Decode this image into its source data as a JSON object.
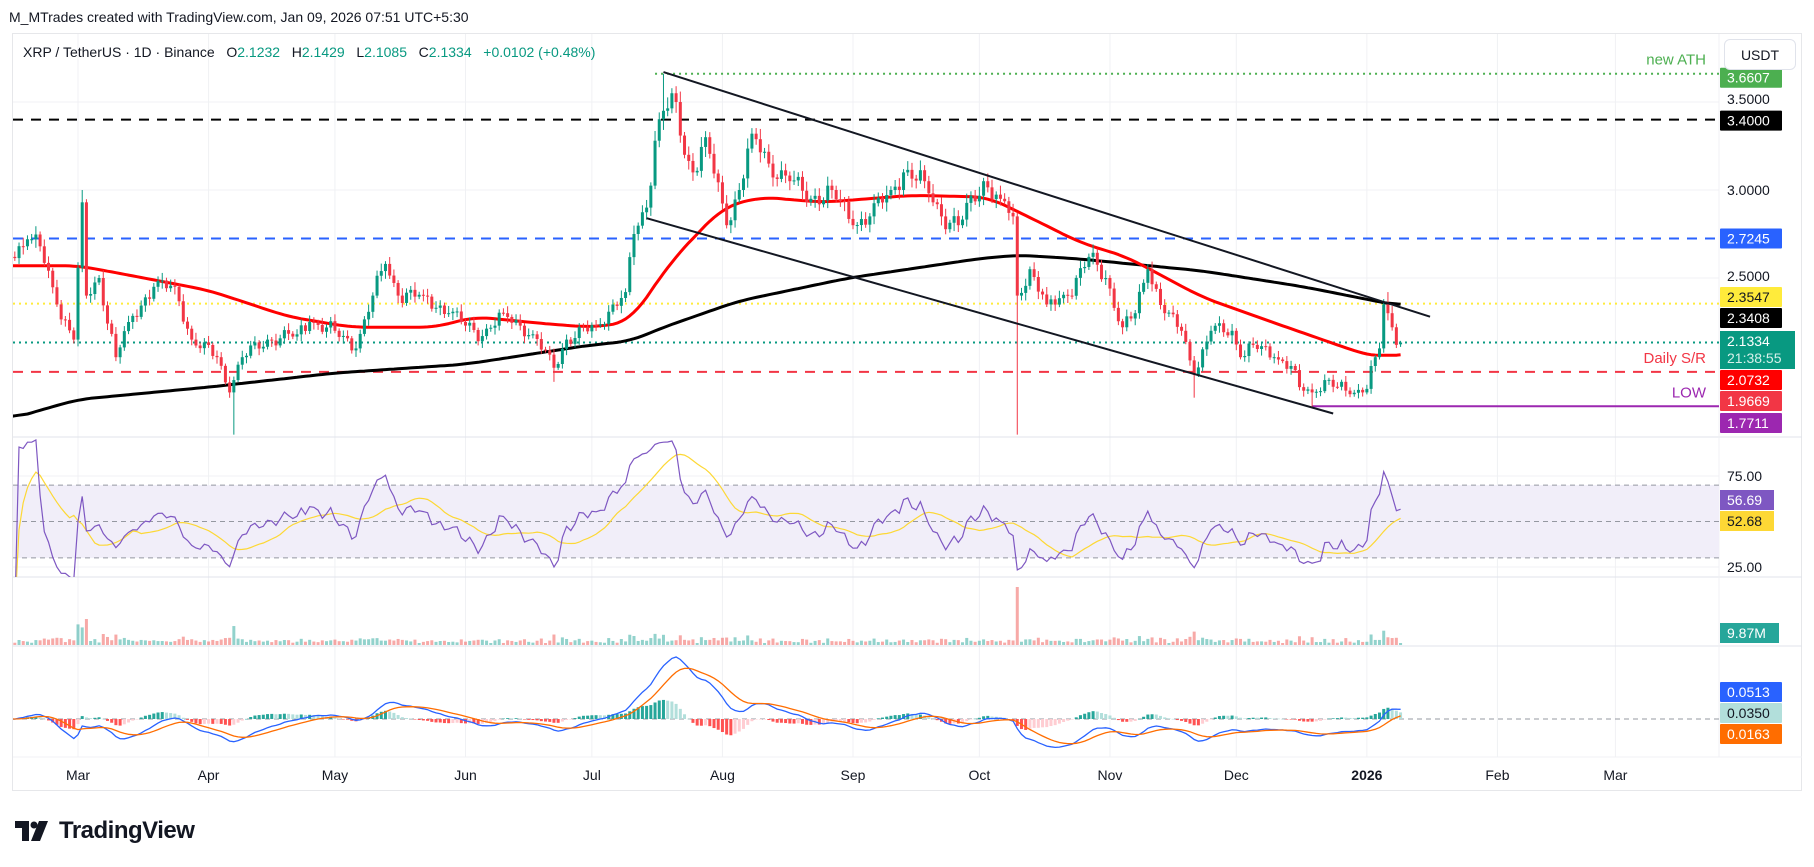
{
  "credit": "M_MTrades created with TradingView.com, Jan 09, 2026 07:51 UTC+5:30",
  "legend": {
    "symbol": "XRP / TetherUS · 1D · Binance",
    "o_label": "O",
    "o": "2.1232",
    "h_label": "H",
    "h": "2.1429",
    "l_label": "L",
    "l": "2.1085",
    "c_label": "C",
    "c": "2.1334",
    "change": "+0.0102 (+0.48%)"
  },
  "currency_button": "USDT",
  "brand": "TradingView",
  "colors": {
    "up": "#089981",
    "down": "#f23645",
    "ma50": "#ff0000",
    "ma200": "#000000",
    "rsi": "#7e57c2",
    "rsi_ma": "#fdd835",
    "macd": "#2962ff",
    "signal": "#ff6d00",
    "ath": "#4caf50",
    "resistance": "#2962ff",
    "sr": "#f23645",
    "low": "#9c27b0"
  },
  "chart_data": {
    "type": "candlestick",
    "symbol": "XRP / TetherUS",
    "timeframe": "1D",
    "y_axis": {
      "ticks": [
        "3.5000",
        "3.0000",
        "2.5000"
      ],
      "range": [
        1.55,
        3.75
      ],
      "scale": "linear"
    },
    "x_axis": {
      "ticks": [
        "Mar",
        "Apr",
        "May",
        "Jun",
        "Jul",
        "Aug",
        "Sep",
        "Oct",
        "Nov",
        "Dec",
        "2026",
        "Feb",
        "Mar"
      ]
    },
    "close_path": [
      [
        "2025-02-13",
        2.62
      ],
      [
        "2025-02-17",
        2.72
      ],
      [
        "2025-02-20",
        2.68
      ],
      [
        "2025-02-24",
        2.35
      ],
      [
        "2025-02-28",
        2.15
      ],
      [
        "2025-03-02",
        2.93
      ],
      [
        "2025-03-03",
        2.4
      ],
      [
        "2025-03-06",
        2.5
      ],
      [
        "2025-03-10",
        2.05
      ],
      [
        "2025-03-13",
        2.25
      ],
      [
        "2025-03-19",
        2.45
      ],
      [
        "2025-03-24",
        2.45
      ],
      [
        "2025-03-28",
        2.15
      ],
      [
        "2025-04-03",
        2.05
      ],
      [
        "2025-04-06",
        1.85
      ],
      [
        "2025-04-07",
        1.92
      ],
      [
        "2025-04-09",
        2.05
      ],
      [
        "2025-04-15",
        2.15
      ],
      [
        "2025-04-22",
        2.18
      ],
      [
        "2025-04-25",
        2.25
      ],
      [
        "2025-05-01",
        2.2
      ],
      [
        "2025-05-06",
        2.1
      ],
      [
        "2025-05-10",
        2.4
      ],
      [
        "2025-05-13",
        2.58
      ],
      [
        "2025-05-16",
        2.4
      ],
      [
        "2025-05-22",
        2.4
      ],
      [
        "2025-05-28",
        2.3
      ],
      [
        "2025-06-05",
        2.17
      ],
      [
        "2025-06-10",
        2.3
      ],
      [
        "2025-06-17",
        2.18
      ],
      [
        "2025-06-22",
        1.99
      ],
      [
        "2025-06-25",
        2.15
      ],
      [
        "2025-07-02",
        2.23
      ],
      [
        "2025-07-09",
        2.42
      ],
      [
        "2025-07-11",
        2.75
      ],
      [
        "2025-07-14",
        2.9
      ],
      [
        "2025-07-16",
        3.28
      ],
      [
        "2025-07-18",
        3.45
      ],
      [
        "2025-07-21",
        3.5
      ],
      [
        "2025-07-23",
        3.2
      ],
      [
        "2025-07-25",
        3.1
      ],
      [
        "2025-07-28",
        3.3
      ],
      [
        "2025-08-02",
        2.8
      ],
      [
        "2025-08-05",
        3.0
      ],
      [
        "2025-08-08",
        3.32
      ],
      [
        "2025-08-12",
        3.15
      ],
      [
        "2025-08-17",
        3.05
      ],
      [
        "2025-08-22",
        2.95
      ],
      [
        "2025-08-27",
        3.0
      ],
      [
        "2025-09-01",
        2.8
      ],
      [
        "2025-09-05",
        2.85
      ],
      [
        "2025-09-10",
        3.0
      ],
      [
        "2025-09-13",
        3.1
      ],
      [
        "2025-09-18",
        3.05
      ],
      [
        "2025-09-22",
        2.85
      ],
      [
        "2025-09-26",
        2.8
      ],
      [
        "2025-10-02",
        3.05
      ],
      [
        "2025-10-06",
        2.95
      ],
      [
        "2025-10-09",
        2.85
      ],
      [
        "2025-10-10",
        2.4
      ],
      [
        "2025-10-13",
        2.55
      ],
      [
        "2025-10-17",
        2.35
      ],
      [
        "2025-10-22",
        2.4
      ],
      [
        "2025-10-27",
        2.62
      ],
      [
        "2025-10-31",
        2.5
      ],
      [
        "2025-11-04",
        2.22
      ],
      [
        "2025-11-07",
        2.3
      ],
      [
        "2025-11-10",
        2.55
      ],
      [
        "2025-11-14",
        2.3
      ],
      [
        "2025-11-18",
        2.2
      ],
      [
        "2025-11-21",
        1.95
      ],
      [
        "2025-11-25",
        2.2
      ],
      [
        "2025-11-30",
        2.2
      ],
      [
        "2025-12-02",
        2.05
      ],
      [
        "2025-12-05",
        2.12
      ],
      [
        "2025-12-10",
        2.05
      ],
      [
        "2025-12-14",
        2.0
      ],
      [
        "2025-12-16",
        1.88
      ],
      [
        "2025-12-19",
        1.85
      ],
      [
        "2025-12-22",
        1.92
      ],
      [
        "2025-12-27",
        1.86
      ],
      [
        "2025-12-31",
        1.85
      ],
      [
        "2026-01-01",
        1.87
      ],
      [
        "2026-01-02",
        2.0
      ],
      [
        "2026-01-03",
        2.05
      ],
      [
        "2026-01-04",
        2.1
      ],
      [
        "2026-01-05",
        2.35
      ],
      [
        "2026-01-06",
        2.3
      ],
      [
        "2026-01-07",
        2.22
      ],
      [
        "2026-01-08",
        2.12
      ]
    ],
    "last_candle": {
      "date": "2026-01-09",
      "open": 2.1232,
      "high": 2.1429,
      "low": 2.1085,
      "close": 2.1334
    },
    "extremes": [
      {
        "date": "2025-03-02",
        "high": 3.0
      },
      {
        "date": "2025-04-07",
        "low": 1.61
      },
      {
        "date": "2025-06-22",
        "low": 1.91
      },
      {
        "date": "2025-07-18",
        "high": 3.66
      },
      {
        "date": "2025-10-10",
        "low": 1.61
      },
      {
        "date": "2025-11-21",
        "low": 1.82
      },
      {
        "date": "2025-12-19",
        "low": 1.77
      },
      {
        "date": "2026-01-06",
        "high": 2.42
      }
    ],
    "ma50": [
      [
        "2025-02-13",
        2.57
      ],
      [
        "2025-03-01",
        2.57
      ],
      [
        "2025-03-10",
        2.53
      ],
      [
        "2025-04-01",
        2.43
      ],
      [
        "2025-04-20",
        2.28
      ],
      [
        "2025-05-05",
        2.22
      ],
      [
        "2025-05-25",
        2.22
      ],
      [
        "2025-06-03",
        2.28
      ],
      [
        "2025-06-20",
        2.24
      ],
      [
        "2025-07-01",
        2.22
      ],
      [
        "2025-07-10",
        2.25
      ],
      [
        "2025-07-20",
        2.6
      ],
      [
        "2025-08-01",
        2.9
      ],
      [
        "2025-08-10",
        2.96
      ],
      [
        "2025-08-25",
        2.93
      ],
      [
        "2025-09-15",
        2.97
      ],
      [
        "2025-10-03",
        2.96
      ],
      [
        "2025-10-15",
        2.82
      ],
      [
        "2025-10-25",
        2.7
      ],
      [
        "2025-11-05",
        2.62
      ],
      [
        "2025-11-12",
        2.53
      ],
      [
        "2025-11-23",
        2.39
      ],
      [
        "2025-12-13",
        2.22
      ],
      [
        "2025-12-31",
        2.07
      ],
      [
        "2026-01-04",
        2.05
      ],
      [
        "2026-01-09",
        2.0732
      ]
    ],
    "ma200": [
      [
        "2025-02-13",
        1.7
      ],
      [
        "2025-03-01",
        1.81
      ],
      [
        "2025-04-01",
        1.88
      ],
      [
        "2025-05-01",
        1.96
      ],
      [
        "2025-06-01",
        2.01
      ],
      [
        "2025-06-20",
        2.08
      ],
      [
        "2025-07-01",
        2.12
      ],
      [
        "2025-07-10",
        2.14
      ],
      [
        "2025-07-18",
        2.22
      ],
      [
        "2025-08-05",
        2.37
      ],
      [
        "2025-08-31",
        2.5
      ],
      [
        "2025-10-01",
        2.61
      ],
      [
        "2025-10-10",
        2.63
      ],
      [
        "2025-10-24",
        2.61
      ],
      [
        "2025-11-23",
        2.54
      ],
      [
        "2025-12-17",
        2.45
      ],
      [
        "2026-01-09",
        2.3408
      ]
    ],
    "trendlines": [
      {
        "from": [
          "2025-07-18",
          3.67
        ],
        "to": [
          "2026-01-16",
          2.28
        ]
      },
      {
        "from": [
          "2025-07-14",
          2.84
        ],
        "to": [
          "2025-12-24",
          1.73
        ]
      }
    ],
    "levels": [
      {
        "price": 3.6607,
        "label": "3.6607",
        "note": "new ATH",
        "style": "dotted",
        "color": "#4caf50",
        "from": "2025-07-16"
      },
      {
        "price": 3.4,
        "label": "3.4000",
        "style": "dashed",
        "color": "#000000"
      },
      {
        "price": 2.7245,
        "label": "2.7245",
        "style": "dashed",
        "color": "#2962ff"
      },
      {
        "price": 2.3547,
        "label": "2.3547",
        "style": "dotted",
        "color": "#ffeb3b"
      },
      {
        "price": 2.1334,
        "label": "2.1334",
        "style": "dotted",
        "color": "#089981"
      },
      {
        "price": 1.9669,
        "label": "1.9669",
        "note": "Daily S/R",
        "style": "dashed",
        "color": "#f23645"
      },
      {
        "price": 1.7711,
        "label": "1.7711",
        "note": "LOW",
        "style": "solid",
        "color": "#9c27b0",
        "from": "2025-12-19"
      }
    ],
    "price_labels": {
      "ma200": "2.3408",
      "ma50": "2.0732",
      "countdown": "21:38:55"
    },
    "rsi": {
      "ticks": [
        "75.00",
        "25.00"
      ],
      "value": "56.69",
      "ma_value": "52.68",
      "bands": [
        70,
        50,
        30
      ]
    },
    "volume": {
      "value": "9.87M"
    },
    "macd": {
      "macd_value": "0.0513",
      "hist_value": "0.0350",
      "signal_value": "0.0163"
    }
  }
}
